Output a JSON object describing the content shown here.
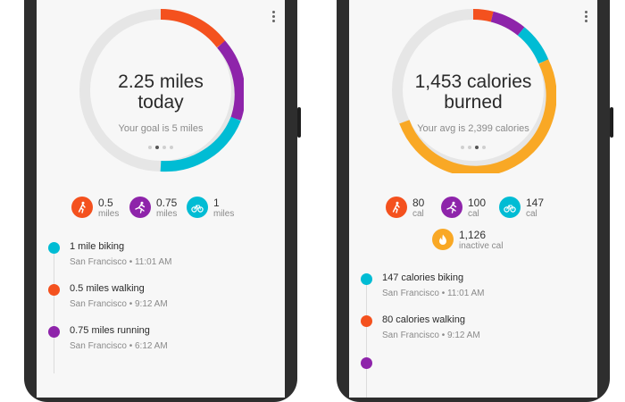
{
  "colors": {
    "red": "#F4511E",
    "purple": "#8E24AA",
    "cyan": "#00BCD4",
    "amber": "#F9A825",
    "track": "#E6E6E6"
  },
  "left": {
    "headline_1": "2.25 miles",
    "headline_2": "today",
    "goal": "Your goal is 5 miles",
    "stats": [
      {
        "icon": "walking-icon",
        "value": "0.5",
        "unit": "miles"
      },
      {
        "icon": "running-icon",
        "value": "0.75",
        "unit": "miles"
      },
      {
        "icon": "biking-icon",
        "value": "1",
        "unit": "miles"
      }
    ],
    "timeline": [
      {
        "title": "1 mile biking",
        "meta": "San Francisco • 11:01 AM"
      },
      {
        "title": "0.5 miles walking",
        "meta": "San Francisco • 9:12 AM"
      },
      {
        "title": "0.75 miles running",
        "meta": "San Francisco • 6:12 AM"
      }
    ]
  },
  "right": {
    "headline_1": "1,453 calories",
    "headline_2": "burned",
    "avg": "Your avg is 2,399 calories",
    "stats": [
      {
        "icon": "walking-icon",
        "value": "80",
        "unit": "cal"
      },
      {
        "icon": "running-icon",
        "value": "100",
        "unit": "cal"
      },
      {
        "icon": "biking-icon",
        "value": "147",
        "unit": "cal"
      },
      {
        "icon": "flame-icon",
        "value": "1,126",
        "unit": "inactive cal"
      }
    ],
    "timeline": [
      {
        "title": "147 calories biking",
        "meta": "San Francisco • 11:01 AM"
      },
      {
        "title": "80 calories walking",
        "meta": "San Francisco • 9:12 AM"
      }
    ]
  }
}
